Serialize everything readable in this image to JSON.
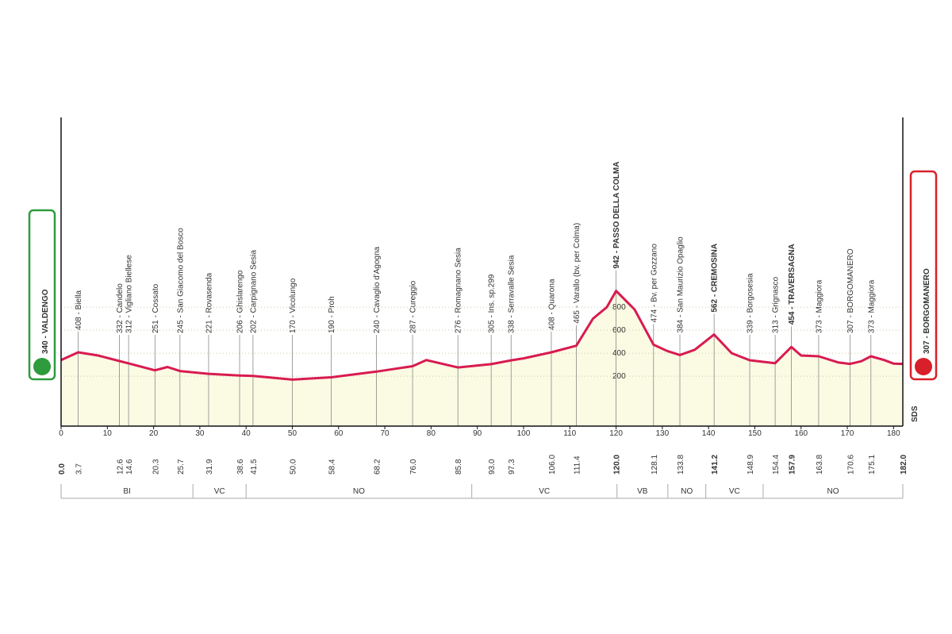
{
  "chart_data": {
    "type": "profile",
    "color": "#d81b50",
    "area_color": "#fbfbe4",
    "grid": true,
    "start": {
      "km": {
        "value": 0,
        "label": "0.0"
      },
      "label": "340 - VALDENGO",
      "color": "#2e9b3c"
    },
    "finish": {
      "km": {
        "value": 182,
        "label": "182.0"
      },
      "label": "307 - BORGOMANERO",
      "color": "#d8202a"
    },
    "credit": "SDS",
    "xlim": [
      0,
      182
    ],
    "xticks": [
      0,
      10,
      20,
      30,
      40,
      50,
      60,
      70,
      80,
      90,
      100,
      110,
      120,
      130,
      140,
      150,
      160,
      170,
      180
    ],
    "ylim": [
      -234,
      2450
    ],
    "yticks": [
      200,
      400,
      600,
      800
    ],
    "x": [
      0,
      3.7,
      8,
      12.6,
      14.6,
      20.3,
      23,
      25.7,
      31.9,
      38.6,
      41.5,
      50,
      58.4,
      68.2,
      76,
      79,
      85.8,
      93,
      97.3,
      100,
      106,
      111.4,
      115,
      118,
      120,
      124,
      128.1,
      131,
      133.8,
      137,
      141.2,
      145,
      148.9,
      154.4,
      157.9,
      160,
      163.8,
      168,
      170.6,
      173,
      175.1,
      178,
      180,
      182
    ],
    "values": [
      340,
      408,
      380,
      332,
      312,
      251,
      280,
      245,
      221,
      206,
      202,
      170,
      190,
      240,
      287,
      340,
      276,
      305,
      338,
      355,
      408,
      465,
      700,
      800,
      942,
      780,
      474,
      420,
      384,
      430,
      562,
      400,
      339,
      313,
      454,
      380,
      373,
      320,
      307,
      330,
      373,
      340,
      310,
      307
    ],
    "waypoints": [
      {
        "km": 3.7,
        "label": "408 - Biella",
        "bold": false
      },
      {
        "km": 12.6,
        "label": "332 - Candelo",
        "bold": false
      },
      {
        "km": 14.6,
        "label": "312 - Vigliano Biellese",
        "bold": false
      },
      {
        "km": 20.3,
        "label": "251 - Cossato",
        "bold": false
      },
      {
        "km": 25.7,
        "label": "245 - San Giacomo del Bosco",
        "bold": false
      },
      {
        "km": 31.9,
        "label": "221 - Rovasenda",
        "bold": false
      },
      {
        "km": 38.6,
        "label": "206 - Ghislarengo",
        "bold": false
      },
      {
        "km": 41.5,
        "label": "202 - Carpignano Sesia",
        "bold": false
      },
      {
        "km": {
          "value": 50,
          "label": "50.0"
        },
        "label": "170 - Vicolungo",
        "bold": false
      },
      {
        "km": 58.4,
        "label": "190 - Proh",
        "bold": false
      },
      {
        "km": 68.2,
        "label": "240 - Cavaglio d'Agogna",
        "bold": false
      },
      {
        "km": {
          "value": 76,
          "label": "76.0"
        },
        "label": "287 - Cureggio",
        "bold": false
      },
      {
        "km": 85.8,
        "label": "276 - Romagnano Sesia",
        "bold": false
      },
      {
        "km": {
          "value": 93,
          "label": "93.0"
        },
        "label": "305 - Ins. sp.299",
        "bold": false
      },
      {
        "km": 97.3,
        "label": "338 - Serravalle Sesia",
        "bold": false
      },
      {
        "km": {
          "value": 106,
          "label": "106.0"
        },
        "label": "408 - Quarona",
        "bold": false
      },
      {
        "km": 111.4,
        "label": "465 - Varallo (bv. per Colma)",
        "bold": false
      },
      {
        "km": {
          "value": 120,
          "label": "120.0"
        },
        "label": "942 - PASSO DELLA COLMA",
        "bold": true
      },
      {
        "km": 128.1,
        "label": "474 - Bv. per Gozzano",
        "bold": false
      },
      {
        "km": 133.8,
        "label": "384 - San Maurizio Opaglio",
        "bold": false
      },
      {
        "km": 141.2,
        "label": "562 - CREMOSINA",
        "bold": true
      },
      {
        "km": 148.9,
        "label": "339 - Borgosesia",
        "bold": false
      },
      {
        "km": 154.4,
        "label": "313 - Grignasco",
        "bold": false
      },
      {
        "km": 157.9,
        "label": "454 - TRAVERSAGNA",
        "bold": true
      },
      {
        "km": 163.8,
        "label": "373 - Maggiora",
        "bold": false
      },
      {
        "km": 170.6,
        "label": "307 - BORGOMANERO",
        "bold": false
      },
      {
        "km": 175.1,
        "label": "373 - Maggiora",
        "bold": false
      }
    ],
    "regions": [
      {
        "name": "BI",
        "from": 0,
        "to": 28.5
      },
      {
        "name": "VC",
        "from": 28.5,
        "to": 40
      },
      {
        "name": "NO",
        "from": 40,
        "to": 88.8
      },
      {
        "name": "VC",
        "from": 88.8,
        "to": 120.2
      },
      {
        "name": "VB",
        "from": 120.2,
        "to": 131.2
      },
      {
        "name": "NO",
        "from": 131.2,
        "to": 139.4
      },
      {
        "name": "VC",
        "from": 139.4,
        "to": 151.8
      },
      {
        "name": "NO",
        "from": 151.8,
        "to": 182
      }
    ]
  }
}
